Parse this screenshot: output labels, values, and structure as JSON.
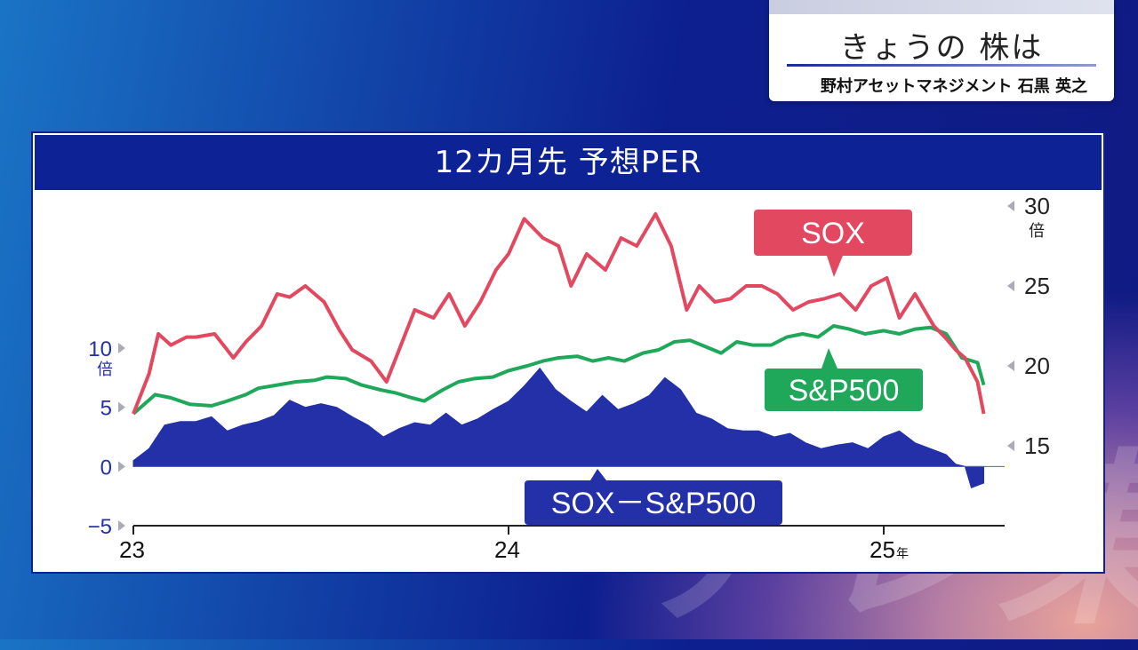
{
  "banner": {
    "title": "きょうの 株は",
    "speaker": "野村アセットマネジメント 石黒 英之"
  },
  "watermark": "テレ東",
  "colors": {
    "header_bg": "#0d2294",
    "sox": "#e24860",
    "sp500": "#1fa85a",
    "spread": "#2330a8"
  },
  "chart_data": {
    "type": "line",
    "title": "12カ月先 予想PER",
    "x_ticks": [
      {
        "value": 0,
        "label": "23"
      },
      {
        "value": 12,
        "label": "24"
      },
      {
        "value": 24,
        "label": "25"
      }
    ],
    "x_unit": "年",
    "x_range_months": [
      0,
      27.8
    ],
    "left_axis": {
      "ticks": [
        10,
        5,
        0,
        -5
      ],
      "unit": "倍",
      "ylim": [
        -5,
        10
      ]
    },
    "right_axis": {
      "ticks": [
        30,
        25,
        20,
        15
      ],
      "unit": "倍",
      "ylim": [
        14.5,
        30
      ]
    },
    "series": [
      {
        "name": "SOX",
        "axis": "right",
        "x": [
          0,
          0.5,
          0.8,
          1.2,
          1.7,
          2.0,
          2.6,
          3.2,
          3.6,
          4.1,
          4.6,
          5.0,
          5.5,
          6.1,
          6.6,
          7.0,
          7.6,
          8.1,
          8.6,
          9.0,
          9.6,
          10.1,
          10.6,
          11.1,
          11.6,
          12.0,
          12.5,
          13.1,
          13.6,
          14.0,
          14.5,
          15.1,
          15.6,
          16.1,
          16.7,
          17.2,
          17.7,
          18.1,
          18.6,
          19.1,
          19.6,
          20.1,
          20.6,
          21.1,
          21.6,
          22.1,
          22.6,
          23.1,
          23.6,
          24.1,
          24.5,
          25.0,
          25.6,
          26.0,
          26.3,
          26.6,
          27.0,
          27.2
        ],
        "values": [
          17.0,
          19.5,
          22.0,
          21.3,
          21.8,
          21.8,
          22.0,
          20.5,
          21.5,
          22.5,
          24.5,
          24.3,
          25.0,
          24.0,
          22.2,
          21.0,
          20.3,
          19.0,
          21.5,
          23.5,
          23.0,
          24.5,
          22.5,
          24.0,
          26.0,
          27.0,
          29.2,
          28.0,
          27.5,
          25.0,
          27.0,
          26.0,
          28.0,
          27.5,
          29.5,
          27.5,
          23.5,
          25.0,
          24.0,
          24.2,
          25.0,
          25.0,
          24.5,
          23.5,
          24.0,
          24.2,
          24.5,
          23.5,
          25.0,
          25.5,
          23.0,
          24.5,
          22.5,
          21.7,
          21.0,
          20.5,
          19.0,
          17.0
        ]
      },
      {
        "name": "S&P500",
        "axis": "right",
        "x": [
          0,
          0.7,
          1.2,
          1.8,
          2.5,
          3.0,
          3.6,
          4.0,
          4.6,
          5.2,
          5.8,
          6.2,
          6.8,
          7.3,
          7.9,
          8.4,
          8.9,
          9.3,
          9.9,
          10.4,
          10.9,
          11.5,
          12.0,
          12.6,
          13.1,
          13.6,
          14.2,
          14.7,
          15.2,
          15.7,
          16.3,
          16.8,
          17.3,
          17.8,
          18.3,
          18.8,
          19.3,
          19.8,
          20.4,
          20.9,
          21.4,
          21.9,
          22.4,
          22.9,
          23.4,
          24.0,
          24.5,
          25.0,
          25.5,
          26.0,
          26.5,
          27.0,
          27.2
        ],
        "values": [
          17.0,
          18.2,
          18.0,
          17.6,
          17.5,
          17.8,
          18.2,
          18.6,
          18.8,
          19.0,
          19.1,
          19.3,
          19.2,
          18.8,
          18.5,
          18.3,
          18.0,
          17.8,
          18.5,
          19.0,
          19.2,
          19.3,
          19.7,
          20.0,
          20.3,
          20.5,
          20.6,
          20.3,
          20.5,
          20.3,
          20.8,
          21.0,
          21.5,
          21.6,
          21.2,
          20.8,
          21.5,
          21.3,
          21.3,
          21.8,
          22.0,
          21.8,
          22.5,
          22.3,
          22.0,
          22.2,
          22.0,
          22.3,
          22.4,
          22.0,
          20.5,
          20.2,
          18.8
        ]
      },
      {
        "name": "SOX－S&P500",
        "type": "area",
        "axis": "left",
        "x": [
          0,
          0.5,
          1.0,
          1.5,
          2.0,
          2.5,
          3.0,
          3.5,
          4.0,
          4.5,
          5.0,
          5.5,
          6.0,
          6.5,
          7.0,
          7.5,
          8.0,
          8.5,
          9.0,
          9.5,
          10.0,
          10.5,
          11.0,
          11.5,
          12.0,
          12.5,
          13.0,
          13.5,
          14.0,
          14.5,
          15.0,
          15.5,
          16.0,
          16.5,
          17.0,
          17.5,
          18.0,
          18.5,
          19.0,
          19.5,
          20.0,
          20.5,
          21.0,
          21.5,
          22.0,
          22.5,
          23.0,
          23.5,
          24.0,
          24.5,
          25.0,
          25.5,
          26.0,
          26.3,
          26.6,
          26.8,
          27.0,
          27.2
        ],
        "values": [
          0.5,
          1.5,
          3.5,
          3.8,
          3.8,
          4.2,
          3.0,
          3.5,
          3.8,
          4.3,
          5.6,
          5.0,
          5.3,
          5.0,
          4.2,
          3.5,
          2.5,
          3.2,
          3.7,
          3.5,
          4.5,
          3.5,
          4.0,
          4.8,
          5.5,
          6.8,
          8.3,
          6.5,
          5.5,
          4.6,
          6.0,
          4.8,
          5.3,
          6.0,
          7.5,
          6.5,
          4.5,
          4.0,
          3.2,
          3.0,
          3.0,
          2.5,
          2.8,
          2.0,
          1.5,
          1.8,
          2.0,
          1.5,
          2.5,
          3.0,
          2.0,
          1.5,
          1.0,
          0.2,
          0.0,
          -1.8,
          -1.6,
          -1.4
        ]
      }
    ],
    "labels": {
      "sox": "SOX",
      "sp500": "S&P500",
      "spread": "SOX－S&P500"
    }
  }
}
